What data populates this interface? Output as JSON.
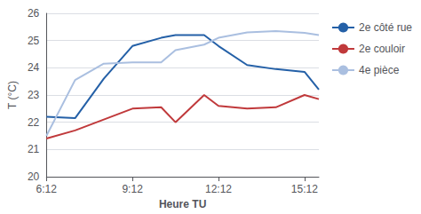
{
  "chart_data": {
    "type": "line",
    "xlabel": "Heure TU",
    "ylabel": "T (°C)",
    "x": [
      0,
      1,
      2,
      3,
      4,
      4.5,
      5.5,
      6,
      7,
      8,
      9,
      9.5
    ],
    "xlim": [
      0,
      9.5
    ],
    "xticks": [
      {
        "value": 0,
        "label": "6:12"
      },
      {
        "value": 3,
        "label": "9:12"
      },
      {
        "value": 6,
        "label": "12:12"
      },
      {
        "value": 9,
        "label": "15:12"
      }
    ],
    "ylim": [
      20,
      26
    ],
    "yticks": [
      20,
      21,
      22,
      23,
      24,
      25,
      26
    ],
    "grid": true,
    "legend": "right",
    "series": [
      {
        "name": "2e côté rue",
        "color": "#2460A7",
        "values": [
          22.2,
          22.15,
          23.6,
          24.8,
          25.1,
          25.2,
          25.2,
          24.8,
          24.1,
          23.95,
          23.85,
          23.2
        ]
      },
      {
        "name": "2e couloir",
        "color": "#C0393B",
        "values": [
          21.4,
          21.7,
          22.1,
          22.5,
          22.55,
          22.0,
          23.0,
          22.6,
          22.5,
          22.55,
          23.0,
          22.85
        ]
      },
      {
        "name": "4e pièce",
        "color": "#AABFE0",
        "values": [
          21.5,
          23.55,
          24.15,
          24.2,
          24.2,
          24.65,
          24.85,
          25.1,
          25.3,
          25.35,
          25.28,
          25.2
        ]
      }
    ]
  }
}
